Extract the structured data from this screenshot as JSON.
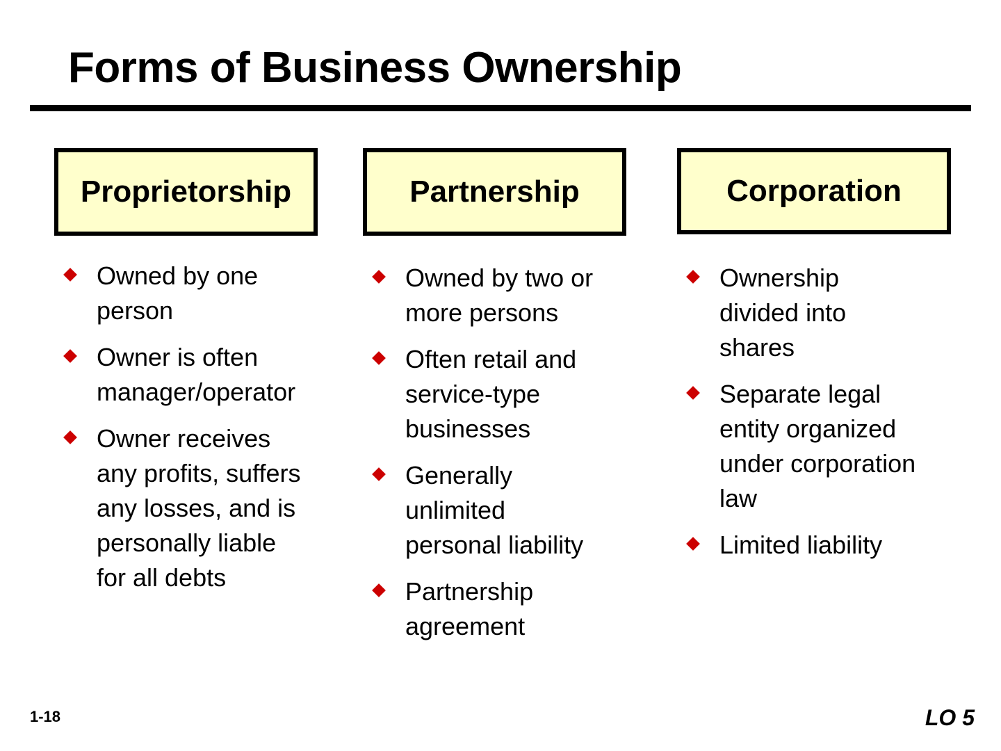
{
  "title": "Forms of Business Ownership",
  "columns": [
    {
      "header": "Proprietorship",
      "bullets": [
        [
          "Owned by one",
          "person"
        ],
        [
          "Owner is often",
          "manager/operator"
        ],
        [
          "Owner receives",
          "any profits, suffers",
          "any losses, and is",
          "personally liable",
          "for all debts"
        ]
      ]
    },
    {
      "header": "Partnership",
      "bullets": [
        [
          "Owned by two or",
          "more persons"
        ],
        [
          "Often retail and",
          "service-type",
          "businesses"
        ],
        [
          "Generally",
          "unlimited",
          "personal liability"
        ],
        [
          "Partnership",
          "agreement"
        ]
      ]
    },
    {
      "header": "Corporation",
      "bullets": [
        [
          "Ownership",
          "divided into",
          "shares"
        ],
        [
          "Separate legal",
          "entity organized",
          "under corporation",
          "law"
        ],
        [
          "Limited liability"
        ]
      ]
    }
  ],
  "footer": {
    "slide_number": "1-18",
    "learning_objective": "LO 5"
  },
  "colors": {
    "header_fill": "#ffffcc",
    "bullet": "#cc0000"
  },
  "icons": {
    "bullet": "diamond-bullet-icon"
  }
}
